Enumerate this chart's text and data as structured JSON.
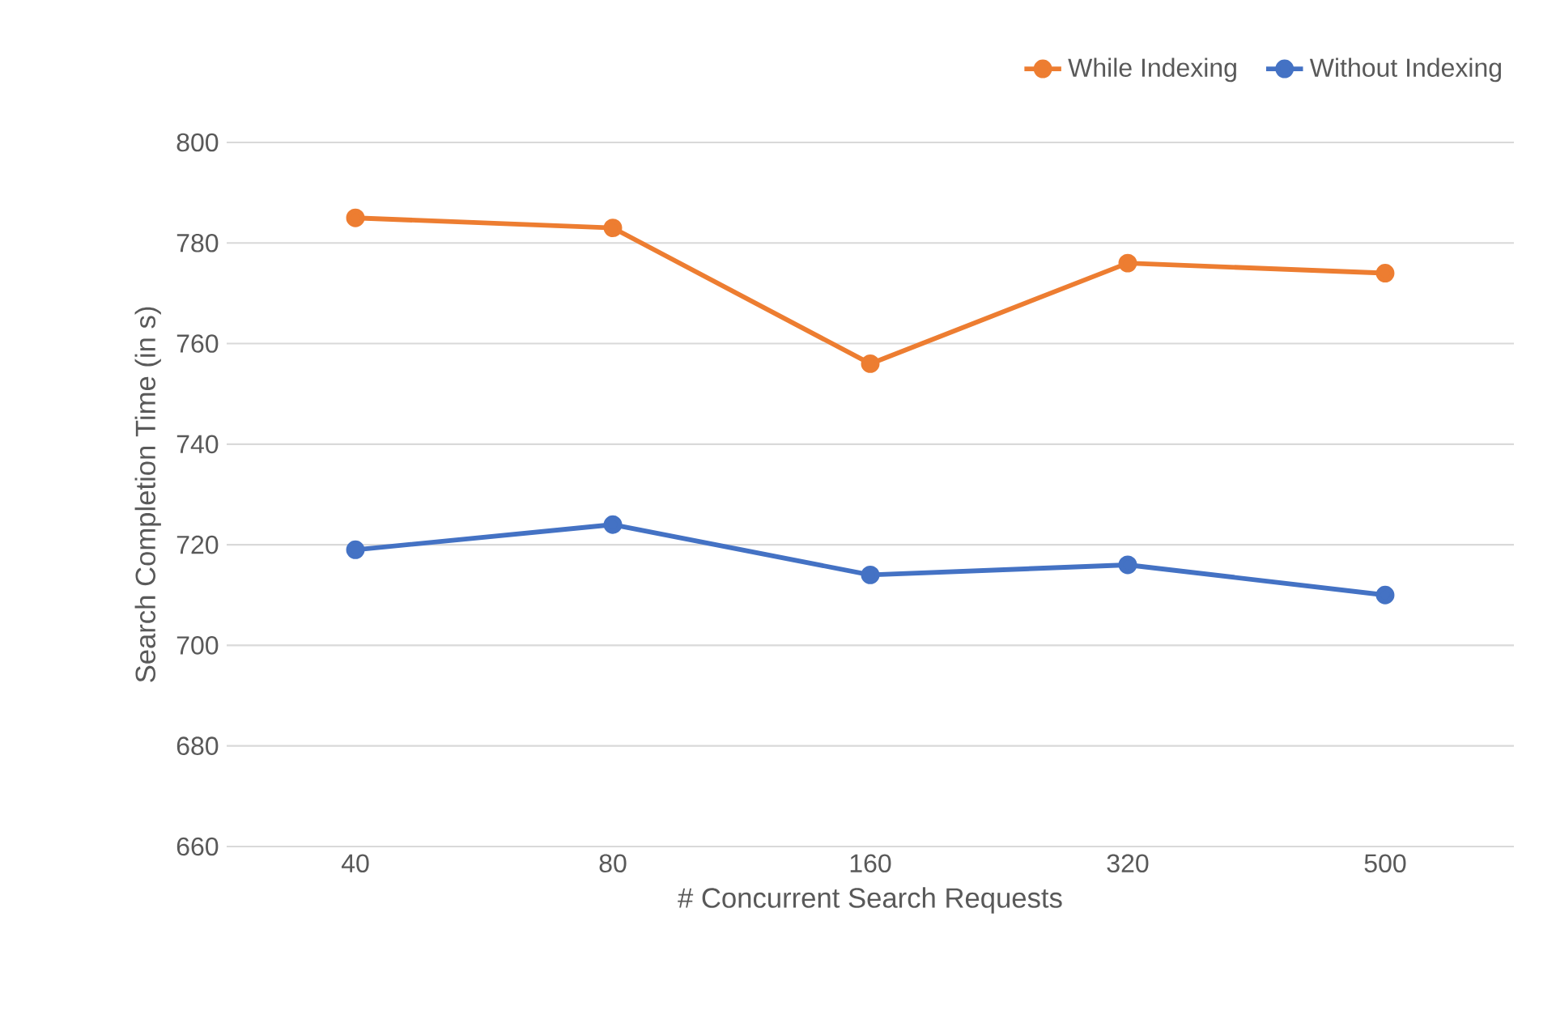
{
  "chart_data": {
    "type": "line",
    "xlabel": "# Concurrent Search Requests",
    "ylabel": "Search Completion Time (in s)",
    "categories": [
      "40",
      "80",
      "160",
      "320",
      "500"
    ],
    "series": [
      {
        "name": "While Indexing",
        "color": "#ed7d31",
        "values": [
          785,
          783,
          756,
          776,
          774
        ]
      },
      {
        "name": "Without Indexing",
        "color": "#4472c4",
        "values": [
          719,
          724,
          714,
          716,
          710
        ]
      }
    ],
    "ylim": [
      660,
      800
    ],
    "yticks": [
      660,
      680,
      700,
      720,
      740,
      760,
      780,
      800
    ],
    "grid": "y",
    "legend": "top right",
    "marker": "circle",
    "line_style": "solid"
  }
}
